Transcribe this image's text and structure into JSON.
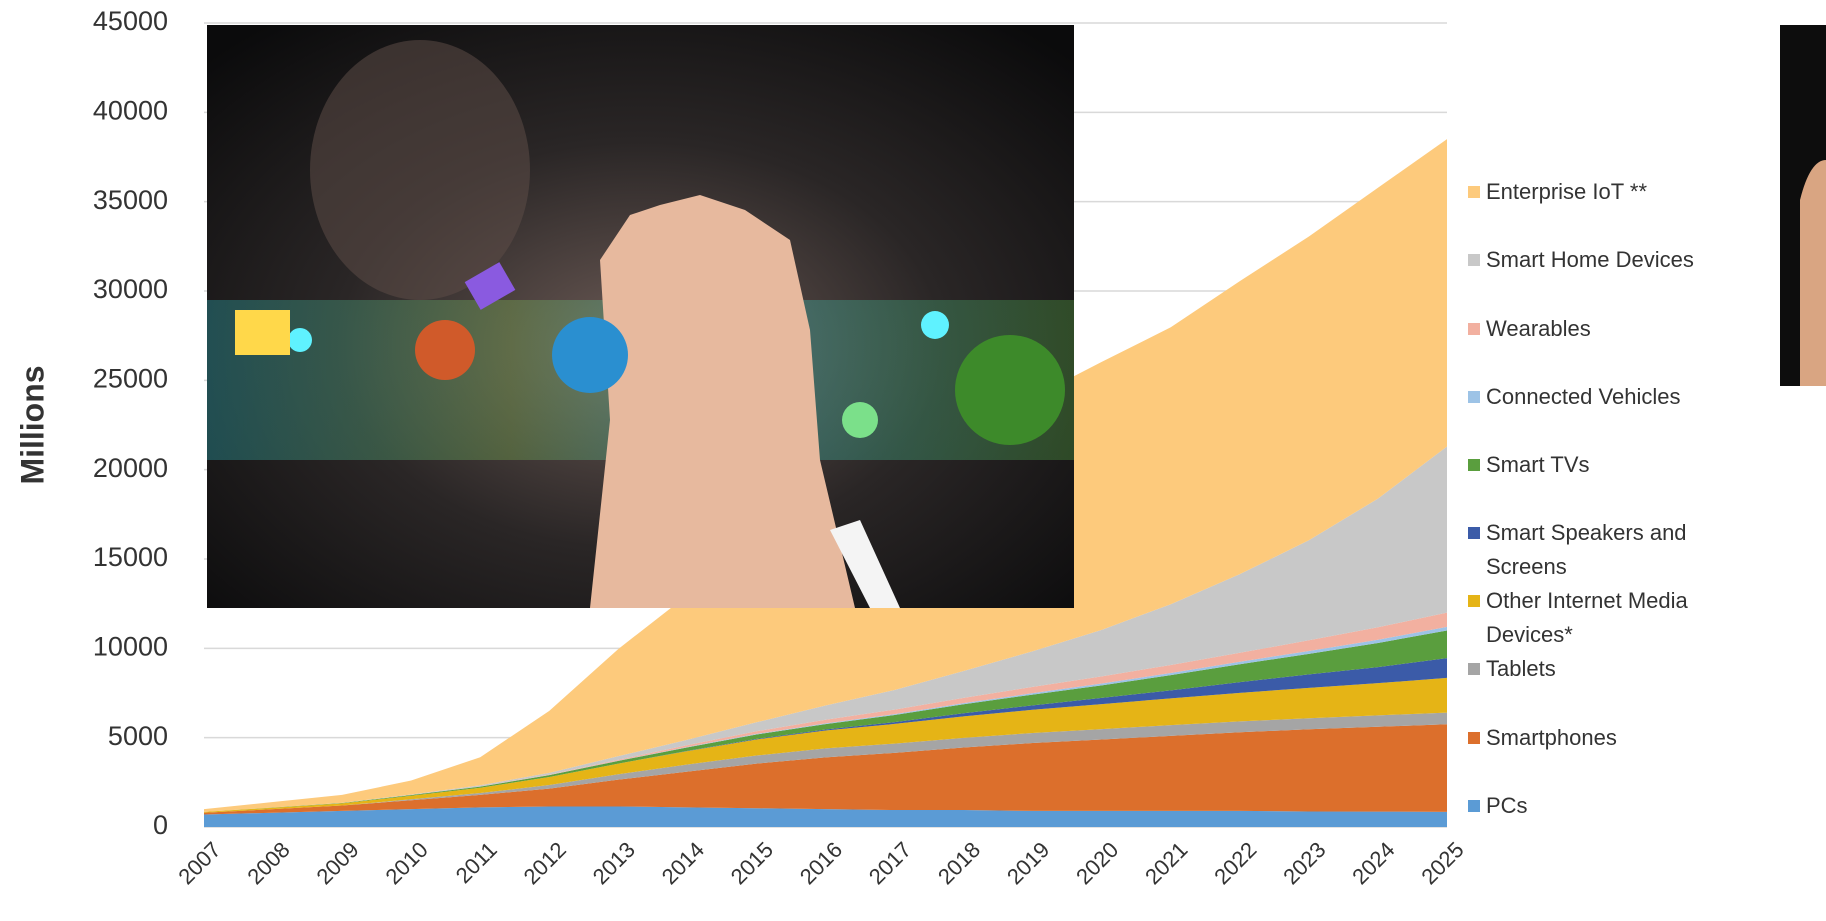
{
  "chart_data": {
    "type": "stacked_area",
    "y_label": "Millions",
    "categories": [
      "2007",
      "2008",
      "2009",
      "2010",
      "2011",
      "2012",
      "2013",
      "2014",
      "2015",
      "2016",
      "2017",
      "2018",
      "2019",
      "2020",
      "2021",
      "2022",
      "2023",
      "2024",
      "2025"
    ],
    "ylim": [
      0,
      45000
    ],
    "yticks": [
      0,
      5000,
      10000,
      15000,
      20000,
      25000,
      30000,
      35000,
      40000,
      45000
    ],
    "grid": true,
    "legend": "right",
    "series": [
      {
        "name": "PCs",
        "color": "#5b9bd5",
        "values": [
          700,
          800,
          900,
          1000,
          1100,
          1150,
          1150,
          1100,
          1050,
          1000,
          950,
          950,
          900,
          900,
          900,
          900,
          870,
          860,
          850
        ]
      },
      {
        "name": "Smartphones",
        "color": "#dc6f2c",
        "values": [
          100,
          200,
          300,
          500,
          700,
          1000,
          1500,
          2000,
          2500,
          2900,
          3200,
          3500,
          3800,
          4000,
          4200,
          4400,
          4600,
          4750,
          4900
        ]
      },
      {
        "name": "Tablets",
        "color": "#a5a5a5",
        "values": [
          0,
          0,
          0,
          50,
          100,
          200,
          300,
          400,
          450,
          500,
          520,
          540,
          560,
          580,
          600,
          610,
          620,
          640,
          650
        ]
      },
      {
        "name": "Other Internet Media Devices*",
        "color": "#e5b416",
        "values": [
          50,
          80,
          120,
          200,
          300,
          450,
          600,
          750,
          900,
          1000,
          1100,
          1200,
          1300,
          1400,
          1500,
          1600,
          1700,
          1800,
          1950
        ]
      },
      {
        "name": "Smart Speakers and Screens",
        "color": "#3b5ba8",
        "values": [
          0,
          0,
          0,
          0,
          0,
          0,
          0,
          10,
          30,
          60,
          100,
          180,
          250,
          350,
          450,
          600,
          750,
          900,
          1100
        ]
      },
      {
        "name": "Smart TVs",
        "color": "#5a9e3e",
        "values": [
          0,
          10,
          20,
          40,
          60,
          100,
          150,
          200,
          250,
          300,
          400,
          500,
          600,
          700,
          850,
          1000,
          1150,
          1350,
          1550
        ]
      },
      {
        "name": "Connected Vehicles",
        "color": "#9dc3e6",
        "values": [
          0,
          0,
          0,
          0,
          5,
          10,
          15,
          20,
          30,
          40,
          50,
          60,
          80,
          100,
          120,
          140,
          160,
          180,
          200
        ]
      },
      {
        "name": "Wearables",
        "color": "#f2b0a0",
        "values": [
          0,
          0,
          0,
          0,
          10,
          20,
          50,
          100,
          150,
          200,
          250,
          300,
          350,
          400,
          450,
          500,
          600,
          700,
          800
        ]
      },
      {
        "name": "Smart Home Devices",
        "color": "#c8c8c8",
        "values": [
          0,
          0,
          10,
          30,
          60,
          100,
          200,
          300,
          500,
          800,
          1100,
          1500,
          2000,
          2600,
          3400,
          4400,
          5600,
          7200,
          9300
        ]
      },
      {
        "name": "Enterprise IoT **",
        "color": "#fdca7c",
        "values": [
          150,
          310,
          450,
          780,
          1570,
          3470,
          6000,
          8100,
          9600,
          11100,
          12300,
          13300,
          14200,
          15000,
          15500,
          16400,
          17000,
          17400,
          17200
        ]
      }
    ]
  }
}
